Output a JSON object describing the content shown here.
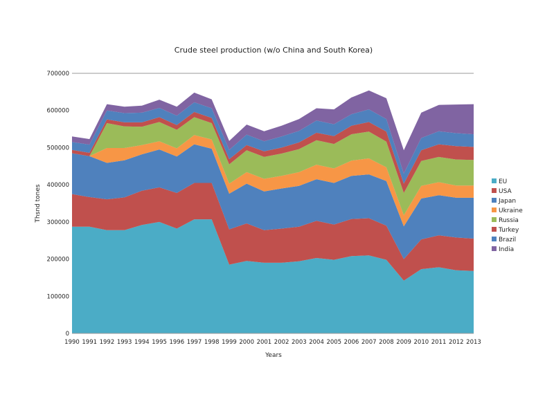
{
  "chart_data": {
    "type": "area",
    "stacked": true,
    "title": "Crude steel production (w/o China and South Korea)",
    "xlabel": "Years",
    "ylabel": "Thsnd tones",
    "ylim": [
      0,
      700000
    ],
    "yticks": [
      0,
      100000,
      200000,
      300000,
      400000,
      500000,
      600000,
      700000
    ],
    "ytick_labels": [
      "0",
      "100000",
      "200000",
      "300000",
      "400000",
      "500000",
      "600000",
      "700000"
    ],
    "grid": "horizontal-top",
    "legend_position": "right",
    "x": [
      "1990",
      "1991",
      "1992",
      "1993",
      "1994",
      "1995",
      "1996",
      "1997",
      "1998",
      "1999",
      "2000",
      "2001",
      "2002",
      "2003",
      "2004",
      "2005",
      "2006",
      "2007",
      "2008",
      "2009",
      "2010",
      "2011",
      "2012",
      "2013"
    ],
    "series": [
      {
        "name": "EU",
        "color": "#4bacc6",
        "values": [
          287000,
          287000,
          278000,
          278000,
          292000,
          300000,
          282000,
          307000,
          307000,
          185000,
          195000,
          190000,
          190000,
          194000,
          203000,
          198000,
          208000,
          210000,
          198000,
          142000,
          173000,
          178000,
          170000,
          168000
        ]
      },
      {
        "name": "USA",
        "color": "#c0504d",
        "values": [
          88000,
          80000,
          83000,
          88000,
          92000,
          93000,
          96000,
          98000,
          98000,
          95000,
          101000,
          88000,
          92000,
          93000,
          100000,
          95000,
          100000,
          100000,
          92000,
          58000,
          80000,
          86000,
          88000,
          87000
        ]
      },
      {
        "name": "Japan",
        "color": "#4f81bd",
        "values": [
          110000,
          110000,
          98000,
          100000,
          98000,
          102000,
          98000,
          104000,
          92000,
          96000,
          107000,
          104000,
          108000,
          110000,
          112000,
          112000,
          116000,
          118000,
          120000,
          88000,
          110000,
          108000,
          107000,
          110000
        ]
      },
      {
        "name": "Ukraine",
        "color": "#f79646",
        "values": [
          0,
          0,
          40000,
          33000,
          25000,
          22000,
          22000,
          25000,
          25000,
          27000,
          31000,
          34000,
          34000,
          37000,
          39000,
          39000,
          41000,
          43000,
          37000,
          30000,
          34000,
          35000,
          33000,
          33000
        ]
      },
      {
        "name": "Russia",
        "color": "#9bbb59",
        "values": [
          0,
          0,
          67000,
          58000,
          49000,
          52000,
          50000,
          48000,
          44000,
          52000,
          59000,
          59000,
          60000,
          62000,
          66000,
          66000,
          71000,
          72000,
          69000,
          60000,
          67000,
          68000,
          70000,
          69000
        ]
      },
      {
        "name": "Turkey",
        "color": "#c0504d",
        "values": [
          9000,
          9000,
          10000,
          11000,
          12000,
          13000,
          13000,
          14000,
          14000,
          14000,
          14000,
          15000,
          16000,
          18000,
          20000,
          21000,
          23000,
          26000,
          27000,
          25000,
          29000,
          34000,
          36000,
          35000
        ]
      },
      {
        "name": "Brazil",
        "color": "#4f81bd",
        "values": [
          21000,
          22000,
          24000,
          25000,
          26000,
          25000,
          25000,
          26000,
          26000,
          25000,
          28000,
          27000,
          30000,
          31000,
          33000,
          32000,
          31000,
          34000,
          34000,
          27000,
          33000,
          35000,
          35000,
          34000
        ]
      },
      {
        "name": "India",
        "color": "#8064a2",
        "values": [
          15000,
          15000,
          17000,
          17000,
          19000,
          22000,
          24000,
          26000,
          24000,
          24000,
          27000,
          27000,
          29000,
          32000,
          33000,
          40000,
          45000,
          51000,
          56000,
          63000,
          68000,
          71000,
          77000,
          81000
        ]
      }
    ]
  }
}
